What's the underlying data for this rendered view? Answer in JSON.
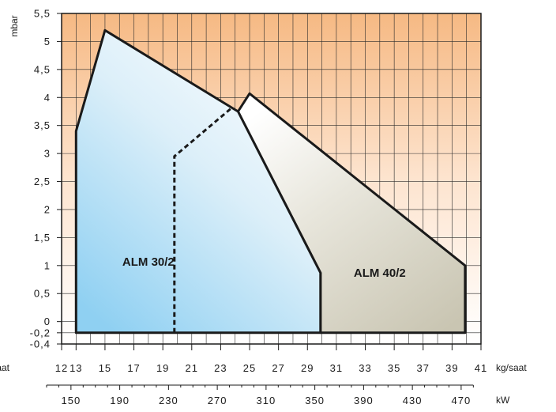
{
  "chart_data": {
    "type": "area",
    "x_unit": "kg/saat",
    "x2_unit": "kW",
    "y_unit": "mbar",
    "left_cut_label": "aat",
    "xlim": [
      12,
      41
    ],
    "ylim": [
      -0.4,
      5.5
    ],
    "x_ticks": [
      12,
      13,
      15,
      17,
      19,
      21,
      23,
      25,
      27,
      29,
      31,
      33,
      35,
      37,
      39,
      41
    ],
    "y_ticks": [
      5.5,
      5,
      4.5,
      4,
      3.5,
      3,
      2.5,
      2,
      1.5,
      1,
      0.5,
      0,
      -0.2,
      -0.4
    ],
    "y_tick_labels": [
      "5,5",
      "5",
      "4,5",
      "4",
      "3,5",
      "3",
      "2,5",
      "2",
      "1,5",
      "1",
      "0,5",
      "0",
      "-0,2",
      "-0,4"
    ],
    "kw_ticks": [
      150,
      190,
      230,
      270,
      310,
      350,
      390,
      430,
      470
    ],
    "series": [
      {
        "name": "ALM 30/2",
        "color": "#8fd0f2",
        "points": [
          [
            13,
            -0.2
          ],
          [
            13,
            3.4
          ],
          [
            15,
            5.2
          ],
          [
            24.2,
            3.75
          ],
          [
            29.9,
            0.87
          ],
          [
            29.9,
            -0.2
          ]
        ],
        "dashed_min_line": [
          [
            19.8,
            -0.2
          ],
          [
            19.8,
            2.95
          ],
          [
            23.7,
            3.8
          ]
        ]
      },
      {
        "name": "ALM 40/2",
        "color": "#cfcbbc",
        "points": [
          [
            29.9,
            -0.2
          ],
          [
            29.9,
            0.87
          ],
          [
            24.2,
            3.75
          ],
          [
            25,
            4.07
          ],
          [
            39.9,
            1.0
          ],
          [
            39.9,
            -0.2
          ]
        ]
      }
    ]
  }
}
